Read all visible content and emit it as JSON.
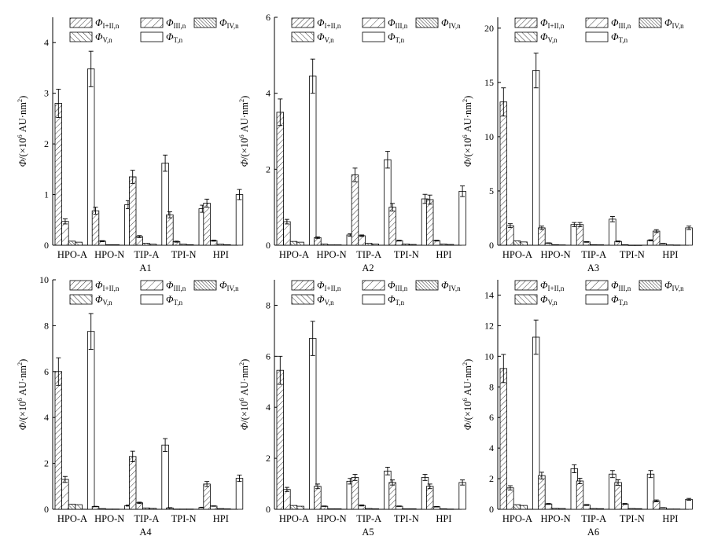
{
  "figure": {
    "legend": [
      {
        "name": "Φ",
        "sub": "I+II,n",
        "pattern": "hatch-fwd"
      },
      {
        "name": "Φ",
        "sub": "III,n",
        "pattern": "hatch-fwd-sparse"
      },
      {
        "name": "Φ",
        "sub": "IV,n",
        "pattern": "hatch-back-dense"
      },
      {
        "name": "Φ",
        "sub": "V,n",
        "pattern": "hatch-back"
      },
      {
        "name": "Φ",
        "sub": "T,n",
        "pattern": "white"
      }
    ],
    "ylabel": {
      "main": "Φ/(×10",
      "exp": "6",
      "unit": " AU·nm",
      "unit_exp": "2",
      "close": ")"
    }
  },
  "chart_data": [
    {
      "type": "bar",
      "title": "A1",
      "categories": [
        "HPO-A",
        "HPO-N",
        "TIP-A",
        "TPI-N",
        "HPI"
      ],
      "ylim": [
        0,
        4.5
      ],
      "yticks": [
        0,
        1,
        2,
        3,
        4
      ],
      "series": [
        {
          "name": "Φ I+II,n",
          "values": [
            2.8,
            0.68,
            1.35,
            0.6,
            0.83
          ],
          "errors": [
            0.28,
            0.07,
            0.13,
            0.06,
            0.08
          ]
        },
        {
          "name": "Φ III,n",
          "values": [
            0.47,
            0.08,
            0.17,
            0.07,
            0.09
          ],
          "errors": [
            0.05,
            0.01,
            0.02,
            0.01,
            0.01
          ]
        },
        {
          "name": "Φ IV,n",
          "values": [
            0.08,
            0.01,
            0.04,
            0.02,
            0.02
          ],
          "errors": [
            0,
            0,
            0,
            0,
            0
          ]
        },
        {
          "name": "Φ V,n",
          "values": [
            0.06,
            0.01,
            0.02,
            0.01,
            0.01
          ],
          "errors": [
            0,
            0,
            0,
            0,
            0
          ]
        },
        {
          "name": "Φ T,n",
          "values": [
            3.48,
            0.8,
            1.62,
            0.72,
            1.0
          ],
          "errors": [
            0.35,
            0.08,
            0.16,
            0.07,
            0.1
          ]
        }
      ]
    },
    {
      "type": "bar",
      "title": "A2",
      "categories": [
        "HPO-A",
        "HPO-N",
        "TIP-A",
        "TPI-N",
        "HPI"
      ],
      "ylim": [
        0,
        6
      ],
      "yticks": [
        0,
        2,
        4,
        6
      ],
      "series": [
        {
          "name": "Φ I+II,n",
          "values": [
            3.5,
            0.2,
            1.85,
            1.0,
            1.2
          ],
          "errors": [
            0.35,
            0.02,
            0.18,
            0.1,
            0.12
          ]
        },
        {
          "name": "Φ III,n",
          "values": [
            0.62,
            0.03,
            0.25,
            0.12,
            0.12
          ],
          "errors": [
            0.06,
            0,
            0.02,
            0.01,
            0.01
          ]
        },
        {
          "name": "Φ IV,n",
          "values": [
            0.1,
            0.01,
            0.05,
            0.03,
            0.03
          ],
          "errors": [
            0,
            0,
            0,
            0,
            0
          ]
        },
        {
          "name": "Φ V,n",
          "values": [
            0.08,
            0.01,
            0.03,
            0.02,
            0.02
          ],
          "errors": [
            0,
            0,
            0,
            0,
            0
          ]
        },
        {
          "name": "Φ T,n",
          "values": [
            4.45,
            0.27,
            2.25,
            1.22,
            1.42
          ],
          "errors": [
            0.45,
            0.03,
            0.22,
            0.12,
            0.14
          ]
        }
      ]
    },
    {
      "type": "bar",
      "title": "A3",
      "categories": [
        "HPO-A",
        "HPO-N",
        "TIP-A",
        "TPI-N",
        "HPI"
      ],
      "ylim": [
        0,
        21
      ],
      "yticks": [
        0,
        5,
        10,
        15,
        20
      ],
      "series": [
        {
          "name": "Φ I+II,n",
          "values": [
            13.2,
            1.6,
            1.9,
            0.35,
            1.3
          ],
          "errors": [
            1.3,
            0.16,
            0.19,
            0.04,
            0.13
          ]
        },
        {
          "name": "Φ III,n",
          "values": [
            1.8,
            0.2,
            0.3,
            0.05,
            0.15
          ],
          "errors": [
            0.18,
            0.02,
            0.03,
            0,
            0.02
          ]
        },
        {
          "name": "Φ IV,n",
          "values": [
            0.4,
            0.05,
            0.05,
            0.01,
            0.03
          ],
          "errors": [
            0,
            0,
            0,
            0,
            0
          ]
        },
        {
          "name": "Φ V,n",
          "values": [
            0.3,
            0.03,
            0.04,
            0.01,
            0.02
          ],
          "errors": [
            0,
            0,
            0,
            0,
            0
          ]
        },
        {
          "name": "Φ T,n",
          "values": [
            16.1,
            1.9,
            2.4,
            0.45,
            1.6
          ],
          "errors": [
            1.6,
            0.19,
            0.24,
            0.05,
            0.16
          ]
        }
      ]
    },
    {
      "type": "bar",
      "title": "A4",
      "categories": [
        "HPO-A",
        "HPO-N",
        "TIP-A",
        "TPI-N",
        "HPI"
      ],
      "ylim": [
        0,
        10
      ],
      "yticks": [
        0,
        2,
        4,
        6,
        8,
        10
      ],
      "series": [
        {
          "name": "Φ I+II,n",
          "values": [
            6.0,
            0.12,
            2.3,
            0.06,
            1.1
          ],
          "errors": [
            0.6,
            0.01,
            0.23,
            0.01,
            0.11
          ]
        },
        {
          "name": "Φ III,n",
          "values": [
            1.3,
            0.03,
            0.28,
            0.01,
            0.14
          ],
          "errors": [
            0.13,
            0,
            0.03,
            0,
            0.01
          ]
        },
        {
          "name": "Φ IV,n",
          "values": [
            0.22,
            0.01,
            0.06,
            0.01,
            0.03
          ],
          "errors": [
            0,
            0,
            0,
            0,
            0
          ]
        },
        {
          "name": "Φ V,n",
          "values": [
            0.2,
            0.01,
            0.04,
            0.01,
            0.02
          ],
          "errors": [
            0,
            0,
            0,
            0,
            0
          ]
        },
        {
          "name": "Φ T,n",
          "values": [
            7.75,
            0.16,
            2.8,
            0.08,
            1.35
          ],
          "errors": [
            0.78,
            0.02,
            0.28,
            0.01,
            0.14
          ]
        }
      ]
    },
    {
      "type": "bar",
      "title": "A5",
      "categories": [
        "HPO-A",
        "HPO-N",
        "TIP-A",
        "TPI-N",
        "HPI"
      ],
      "ylim": [
        0,
        9
      ],
      "yticks": [
        0,
        2,
        4,
        6,
        8
      ],
      "series": [
        {
          "name": "Φ I+II,n",
          "values": [
            5.45,
            0.9,
            1.25,
            1.05,
            0.9
          ],
          "errors": [
            0.55,
            0.09,
            0.12,
            0.1,
            0.09
          ]
        },
        {
          "name": "Φ III,n",
          "values": [
            0.78,
            0.12,
            0.15,
            0.12,
            0.1
          ],
          "errors": [
            0.08,
            0.01,
            0.02,
            0.01,
            0.01
          ]
        },
        {
          "name": "Φ IV,n",
          "values": [
            0.15,
            0.02,
            0.03,
            0.02,
            0.02
          ],
          "errors": [
            0,
            0,
            0,
            0,
            0
          ]
        },
        {
          "name": "Φ V,n",
          "values": [
            0.12,
            0.02,
            0.02,
            0.02,
            0.01
          ],
          "errors": [
            0,
            0,
            0,
            0,
            0
          ]
        },
        {
          "name": "Φ T,n",
          "values": [
            6.7,
            1.1,
            1.5,
            1.25,
            1.05
          ],
          "errors": [
            0.67,
            0.11,
            0.15,
            0.12,
            0.1
          ]
        }
      ]
    },
    {
      "type": "bar",
      "title": "A6",
      "categories": [
        "HPO-A",
        "HPO-N",
        "TIP-A",
        "TPI-N",
        "HPI"
      ],
      "ylim": [
        0,
        15
      ],
      "yticks": [
        0,
        2,
        4,
        6,
        8,
        10,
        12,
        14
      ],
      "series": [
        {
          "name": "Φ I+II,n",
          "values": [
            9.2,
            2.2,
            1.85,
            1.75,
            0.55
          ],
          "errors": [
            0.92,
            0.22,
            0.18,
            0.18,
            0.06
          ]
        },
        {
          "name": "Φ III,n",
          "values": [
            1.4,
            0.35,
            0.28,
            0.35,
            0.1
          ],
          "errors": [
            0.14,
            0.03,
            0.03,
            0.03,
            0.01
          ]
        },
        {
          "name": "Φ IV,n",
          "values": [
            0.3,
            0.06,
            0.05,
            0.05,
            0.02
          ],
          "errors": [
            0,
            0,
            0,
            0,
            0
          ]
        },
        {
          "name": "Φ V,n",
          "values": [
            0.25,
            0.05,
            0.04,
            0.04,
            0.02
          ],
          "errors": [
            0,
            0,
            0,
            0,
            0
          ]
        },
        {
          "name": "Φ T,n",
          "values": [
            11.25,
            2.65,
            2.3,
            2.3,
            0.65
          ],
          "errors": [
            1.12,
            0.26,
            0.23,
            0.23,
            0.06
          ]
        }
      ]
    }
  ]
}
